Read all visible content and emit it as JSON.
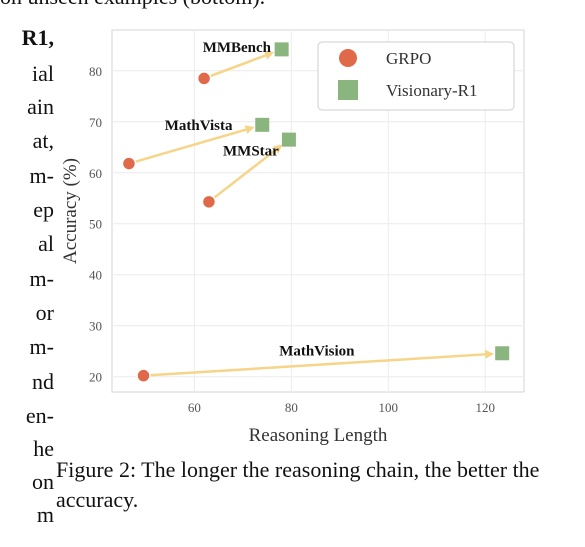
{
  "page": {
    "top_fragment": "on unseen examples (bottom).",
    "left_column_fragments": [
      "R1,",
      "ial",
      "ain",
      "at,",
      "m-",
      "ep",
      "al",
      "m-",
      "or",
      "m-",
      "nd",
      "en-",
      "he",
      "on",
      "m"
    ]
  },
  "chart_data": {
    "type": "scatter",
    "xlabel": "Reasoning Length",
    "ylabel": "Accuracy (%)",
    "xlim": [
      43,
      128
    ],
    "ylim": [
      17,
      88
    ],
    "x_ticks": [
      "60",
      "80",
      "100",
      "120"
    ],
    "y_ticks": [
      "20",
      "30",
      "40",
      "50",
      "60",
      "70",
      "80"
    ],
    "grid": true,
    "legend_placement": "top-right",
    "series": [
      {
        "name": "GRPO",
        "marker": "circle",
        "color": "#e0694a"
      },
      {
        "name": "Visionary-R1",
        "marker": "square",
        "color": "#8bb57e"
      }
    ],
    "arrow_color": "#f6d488",
    "benchmarks": [
      {
        "label": "MMBench",
        "grpo": [
          62,
          78.5
        ],
        "visionary": [
          78,
          84.2
        ]
      },
      {
        "label": "MathVista",
        "grpo": [
          46.5,
          61.8
        ],
        "visionary": [
          74,
          69.4
        ]
      },
      {
        "label": "MMStar",
        "grpo": [
          63,
          54.3
        ],
        "visionary": [
          79.5,
          66.5
        ]
      },
      {
        "label": "MathVision",
        "grpo": [
          49.5,
          20.2
        ],
        "visionary": [
          123.5,
          24.6
        ]
      }
    ]
  },
  "caption": "Figure 2: The longer the reasoning chain, the better the accuracy."
}
